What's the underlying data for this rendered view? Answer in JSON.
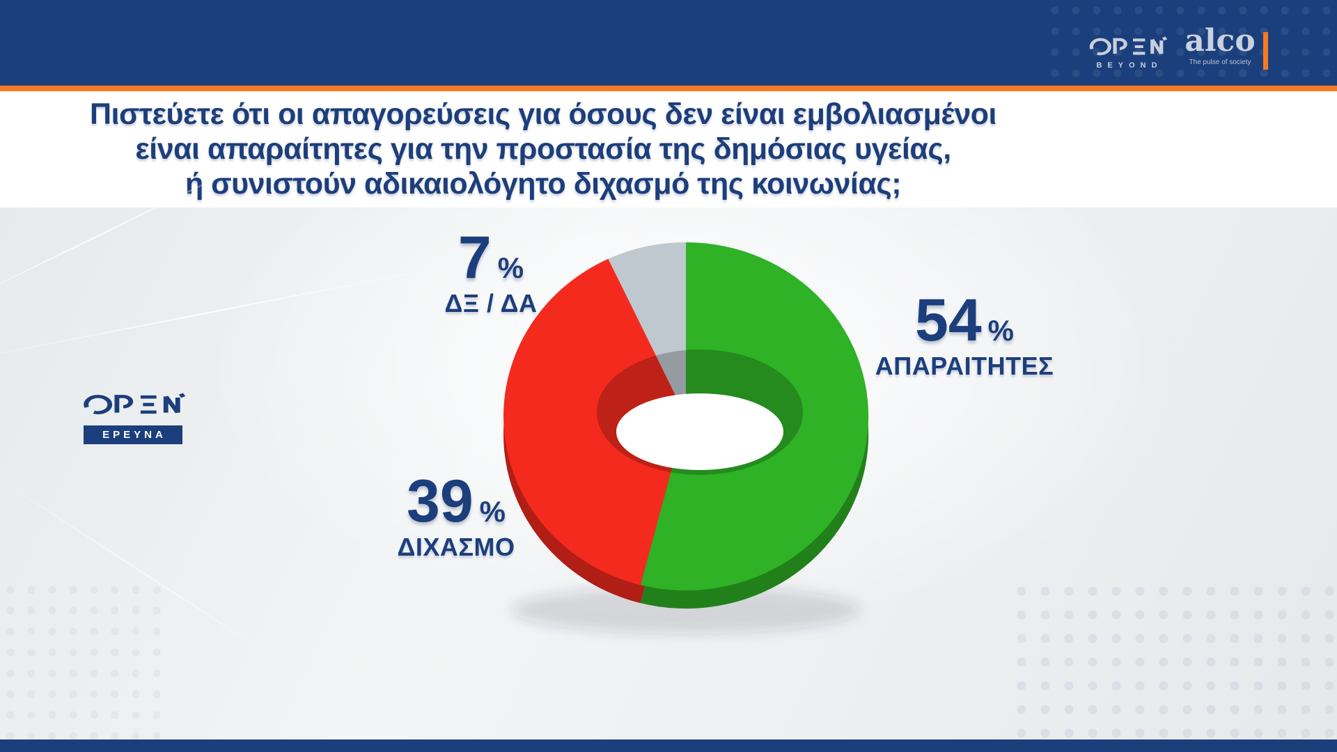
{
  "header": {
    "open": "OPEN",
    "beyond": "BEYOND",
    "alco": "alco",
    "alco_tagline": "The pulse of society"
  },
  "question": {
    "line1": "Πιστεύετε ότι οι απαγορεύσεις για όσους δεν είναι εμβολιασμένοι",
    "line2": "είναι απαραίτητες για την προστασία της δημόσιας υγείας,",
    "line3": "ή συνιστούν αδικαιολόγητο διχασμό της κοινωνίας;"
  },
  "badge": {
    "open": "OPEN",
    "label": "ΕΡΕΥΝΑ"
  },
  "chart_data": {
    "type": "pie",
    "subtype": "3d-donut",
    "title": "Πιστεύετε ότι οι απαγορεύσεις για όσους δεν είναι εμβολιασμένοι είναι απαραίτητες για την προστασία της δημόσιας υγείας, ή συνιστούν αδικαιολόγητο διχασμό της κοινωνίας;",
    "categories": [
      "ΑΠΑΡΑΙΤΗΤΕΣ",
      "ΔΙΧΑΣΜΟ",
      "ΔΞ / ΔΑ"
    ],
    "values": [
      54,
      39,
      7
    ],
    "unit": "%",
    "colors": [
      "#2fb226",
      "#f42a1e",
      "#bec8ce"
    ],
    "label_color": "#1c3e7c",
    "start_angle_deg": 0,
    "direction": "clockwise",
    "legend_position": "around"
  },
  "theme": {
    "header_navy": "#1b3f7d",
    "accent_orange": "#f47b21",
    "title_navy": "#1c3e7c",
    "background_light": "#eef0f2",
    "logo_light": "#c8cfdb"
  }
}
